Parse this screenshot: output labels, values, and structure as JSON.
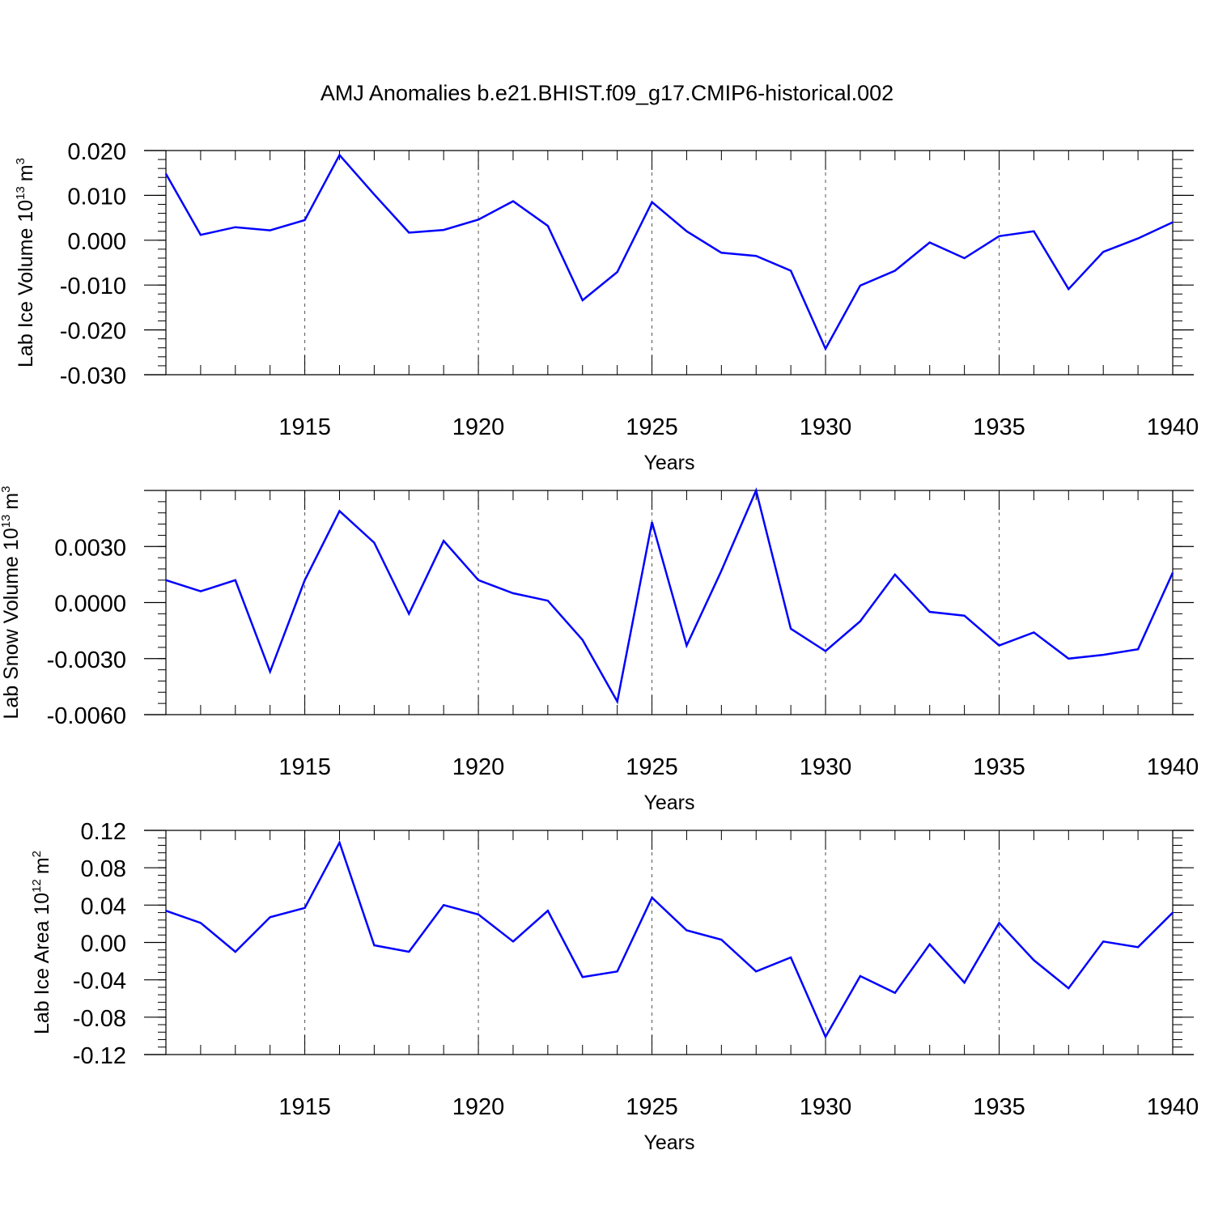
{
  "figure": {
    "title": "AMJ Anomalies b.e21.BHIST.f09_g17.CMIP6-historical.002"
  },
  "chart_data": [
    {
      "type": "line",
      "ylabel": {
        "text": "Lab Ice Volume 10",
        "exp": "13",
        "unit": "m",
        "unit_exp": "3"
      },
      "xlabel": "Years",
      "xlim": [
        1911,
        1940
      ],
      "ylim": [
        -0.03,
        0.02
      ],
      "yticks": [
        0.02,
        0.01,
        0.0,
        -0.01,
        -0.02,
        -0.03
      ],
      "ytick_labels": [
        "0.020",
        "0.010",
        "0.000",
        "-0.010",
        "-0.020",
        "-0.030"
      ],
      "yminor_step": 0.002,
      "xticks": [
        1915,
        1920,
        1925,
        1930,
        1935,
        1940
      ],
      "xtick_labels": [
        "1915",
        "1920",
        "1925",
        "1930",
        "1935",
        "1940"
      ],
      "grid": "vertical dashed at major x ticks",
      "series": [
        {
          "color": "#0000ff",
          "x": [
            1911,
            1912,
            1913,
            1914,
            1915,
            1916,
            1917,
            1918,
            1919,
            1920,
            1921,
            1922,
            1923,
            1924,
            1925,
            1926,
            1927,
            1928,
            1929,
            1930,
            1931,
            1932,
            1933,
            1934,
            1935,
            1936,
            1937,
            1938,
            1939,
            1940
          ],
          "values": [
            0.0148,
            0.0012,
            0.0029,
            0.0022,
            0.0045,
            0.019,
            0.0102,
            0.0017,
            0.0023,
            0.0046,
            0.0087,
            0.0032,
            -0.0134,
            -0.0071,
            0.0085,
            0.002,
            -0.0028,
            -0.0035,
            -0.0068,
            -0.0242,
            -0.0101,
            -0.0068,
            -0.0005,
            -0.004,
            0.0009,
            0.002,
            -0.0109,
            -0.0026,
            0.0004,
            0.004
          ]
        }
      ]
    },
    {
      "type": "line",
      "ylabel": {
        "text": "Lab Snow Volume 10",
        "exp": "13",
        "unit": "m",
        "unit_exp": "3"
      },
      "xlabel": "Years",
      "xlim": [
        1911,
        1940
      ],
      "ylim": [
        -0.006,
        0.006
      ],
      "yticks": [
        0.003,
        0.0,
        -0.003,
        -0.006
      ],
      "ytick_labels": [
        "0.0030",
        "0.0000",
        "-0.0030",
        "-0.0060"
      ],
      "yminor_step": 0.0006,
      "xticks": [
        1915,
        1920,
        1925,
        1930,
        1935,
        1940
      ],
      "xtick_labels": [
        "1915",
        "1920",
        "1925",
        "1930",
        "1935",
        "1940"
      ],
      "grid": "vertical dashed at major x ticks",
      "series": [
        {
          "color": "#0000ff",
          "x": [
            1911,
            1912,
            1913,
            1914,
            1915,
            1916,
            1917,
            1918,
            1919,
            1920,
            1921,
            1922,
            1923,
            1924,
            1925,
            1926,
            1927,
            1928,
            1929,
            1930,
            1931,
            1932,
            1933,
            1934,
            1935,
            1936,
            1937,
            1938,
            1939,
            1940
          ],
          "values": [
            0.0012,
            0.0006,
            0.0012,
            -0.0037,
            0.0012,
            0.0049,
            0.0032,
            -0.0006,
            0.0033,
            0.0012,
            0.0005,
            0.0001,
            -0.002,
            -0.0053,
            0.0043,
            -0.0023,
            0.0017,
            0.006,
            -0.0014,
            -0.0026,
            -0.001,
            0.0015,
            -0.0005,
            -0.0007,
            -0.0023,
            -0.0016,
            -0.003,
            -0.0028,
            -0.0025,
            0.0016
          ]
        }
      ]
    },
    {
      "type": "line",
      "ylabel": {
        "text": "Lab Ice Area 10",
        "exp": "12",
        "unit": "m",
        "unit_exp": "2"
      },
      "xlabel": "Years",
      "xlim": [
        1911,
        1940
      ],
      "ylim": [
        -0.12,
        0.12
      ],
      "yticks": [
        0.12,
        0.08,
        0.04,
        0.0,
        -0.04,
        -0.08,
        -0.12
      ],
      "ytick_labels": [
        "0.12",
        "0.08",
        "0.04",
        "0.00",
        "-0.04",
        "-0.08",
        "-0.12"
      ],
      "yminor_step": 0.008,
      "xticks": [
        1915,
        1920,
        1925,
        1930,
        1935,
        1940
      ],
      "xtick_labels": [
        "1915",
        "1920",
        "1925",
        "1930",
        "1935",
        "1940"
      ],
      "grid": "vertical dashed at major x ticks",
      "series": [
        {
          "color": "#0000ff",
          "x": [
            1911,
            1912,
            1913,
            1914,
            1915,
            1916,
            1917,
            1918,
            1919,
            1920,
            1921,
            1922,
            1923,
            1924,
            1925,
            1926,
            1927,
            1928,
            1929,
            1930,
            1931,
            1932,
            1933,
            1934,
            1935,
            1936,
            1937,
            1938,
            1939,
            1940
          ],
          "values": [
            0.034,
            0.021,
            -0.01,
            0.027,
            0.037,
            0.107,
            -0.003,
            -0.01,
            0.04,
            0.03,
            0.001,
            0.034,
            -0.037,
            -0.031,
            0.048,
            0.013,
            0.003,
            -0.031,
            -0.016,
            -0.101,
            -0.036,
            -0.054,
            -0.002,
            -0.043,
            0.021,
            -0.019,
            -0.049,
            0.001,
            -0.005,
            0.032
          ]
        }
      ]
    }
  ]
}
